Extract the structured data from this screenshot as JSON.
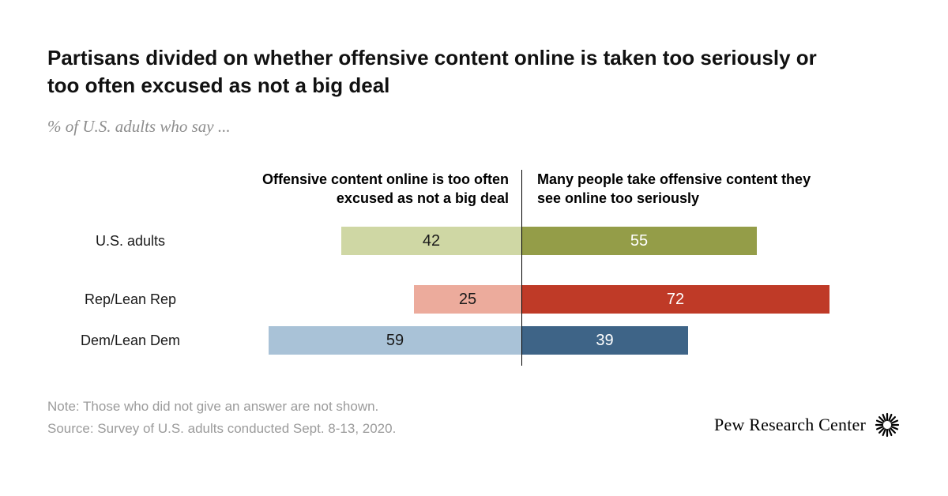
{
  "header": {
    "title": "Partisans divided on whether offensive content online is taken too seriously or too often excused as not a big deal",
    "subtitle": "% of U.S. adults who say ..."
  },
  "chart_data": {
    "type": "bar",
    "orientation": "horizontal-diverging",
    "unit": "percent",
    "value_range": [
      0,
      72
    ],
    "categories": [
      "U.S. adults",
      "Rep/Lean Rep",
      "Dem/Lean Dem"
    ],
    "series": [
      {
        "name": "Offensive content online is too often excused as not a big deal",
        "side": "left",
        "values": [
          42,
          25,
          59
        ],
        "colors": [
          "#cfd7a4",
          "#ecab9c",
          "#a9c2d7"
        ],
        "label_color": "#1a1a1a"
      },
      {
        "name": "Many people take offensive content they see online too seriously",
        "side": "right",
        "values": [
          55,
          72,
          39
        ],
        "colors": [
          "#949d48",
          "#bf3a27",
          "#3e6487"
        ],
        "label_color": "#ffffff"
      }
    ],
    "divider": "vertical center line separating the two statements",
    "legend_position": "column-headers-above-chart"
  },
  "footer": {
    "note": "Note: Those who did not give an answer are not shown.",
    "source": "Source: Survey of U.S. adults conducted Sept. 8-13, 2020.",
    "brand": "Pew Research Center"
  }
}
